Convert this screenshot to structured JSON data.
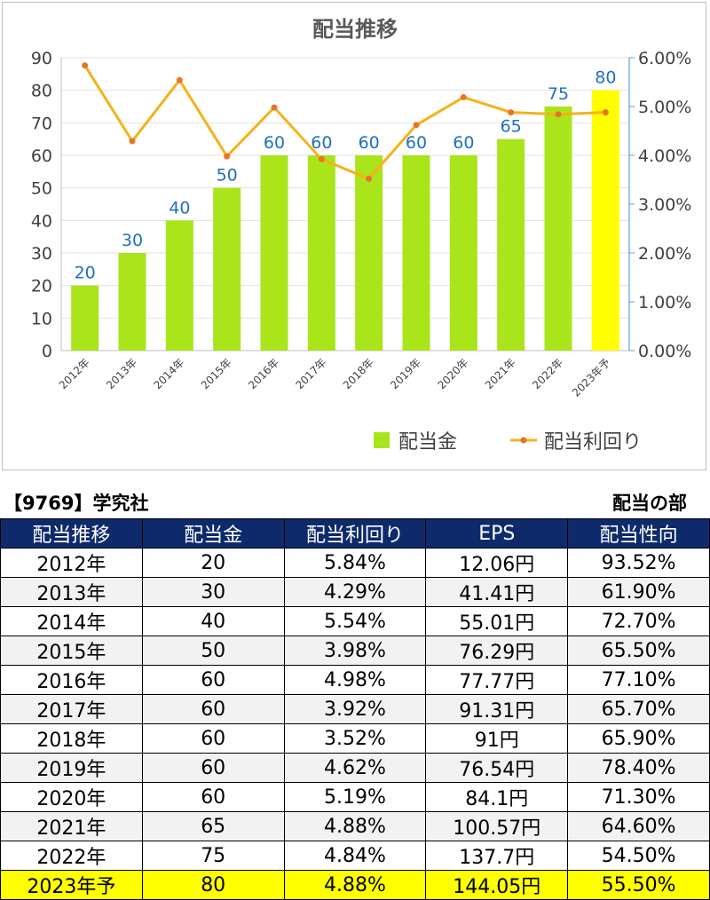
{
  "chart_data": {
    "type": "bar+line",
    "title": "配当推移",
    "categories": [
      "2012年",
      "2013年",
      "2014年",
      "2015年",
      "2016年",
      "2017年",
      "2018年",
      "2019年",
      "2020年",
      "2021年",
      "2022年",
      "2023年予"
    ],
    "series": [
      {
        "name": "配当金",
        "type": "bar",
        "axis": "left",
        "values": [
          20,
          30,
          40,
          50,
          60,
          60,
          60,
          60,
          60,
          65,
          75,
          80
        ],
        "color": "#a9e51a",
        "highlight_color": "#ffff00",
        "highlight_index": 11,
        "label_color": "#1f6fbf"
      },
      {
        "name": "配当利回り",
        "type": "line",
        "axis": "right",
        "values": [
          5.84,
          4.29,
          5.54,
          3.98,
          4.98,
          3.92,
          3.52,
          4.62,
          5.19,
          4.88,
          4.84,
          4.88
        ],
        "color": "#f5b21a",
        "marker_color": "#e8742a"
      }
    ],
    "y_left": {
      "min": 0,
      "max": 90,
      "ticks": [
        "0",
        "10",
        "20",
        "30",
        "40",
        "50",
        "60",
        "70",
        "80",
        "90"
      ]
    },
    "y_right": {
      "min": 0,
      "max": 6,
      "ticks": [
        "0.00%",
        "1.00%",
        "2.00%",
        "3.00%",
        "4.00%",
        "5.00%",
        "6.00%"
      ]
    },
    "grid": true,
    "legend_position": "bottom-right"
  },
  "table": {
    "company": "【9769】学究社",
    "section": "配当の部",
    "headers": [
      "配当推移",
      "配当金",
      "配当利回り",
      "EPS",
      "配当性向"
    ],
    "rows": [
      [
        "2012年",
        "20",
        "5.84%",
        "12.06円",
        "93.52%"
      ],
      [
        "2013年",
        "30",
        "4.29%",
        "41.41円",
        "61.90%"
      ],
      [
        "2014年",
        "40",
        "5.54%",
        "55.01円",
        "72.70%"
      ],
      [
        "2015年",
        "50",
        "3.98%",
        "76.29円",
        "65.50%"
      ],
      [
        "2016年",
        "60",
        "4.98%",
        "77.77円",
        "77.10%"
      ],
      [
        "2017年",
        "60",
        "3.92%",
        "91.31円",
        "65.70%"
      ],
      [
        "2018年",
        "60",
        "3.52%",
        "91円",
        "65.90%"
      ],
      [
        "2019年",
        "60",
        "4.62%",
        "76.54円",
        "78.40%"
      ],
      [
        "2020年",
        "60",
        "5.19%",
        "84.1円",
        "71.30%"
      ],
      [
        "2021年",
        "65",
        "4.88%",
        "100.57円",
        "64.60%"
      ],
      [
        "2022年",
        "75",
        "4.84%",
        "137.7円",
        "54.50%"
      ],
      [
        "2023年予",
        "80",
        "4.88%",
        "144.05円",
        "55.50%"
      ]
    ],
    "highlight_row": 11,
    "header_bg": "#0e2a6b",
    "alt_row_bg": "#f2f2f2",
    "highlight_bg": "#ffff00"
  }
}
